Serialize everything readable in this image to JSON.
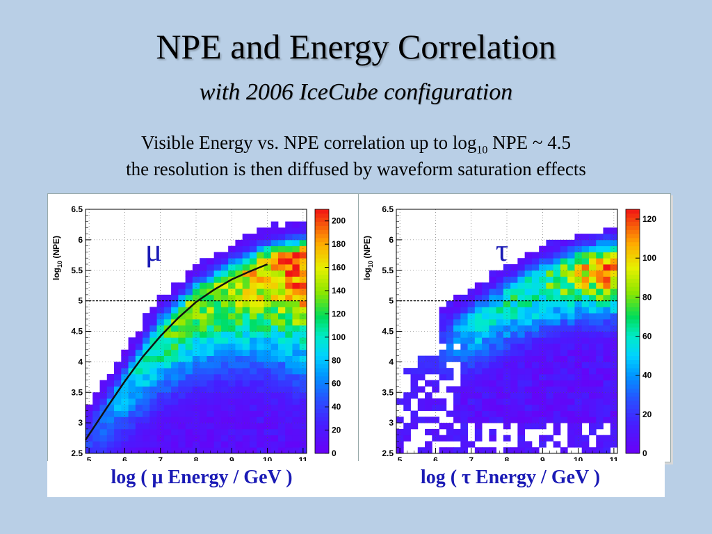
{
  "slide": {
    "title": "NPE and Energy Correlation",
    "subtitle": "with 2006 IceCube configuration",
    "desc_line1_pre": "Visible Energy vs. NPE correlation up to log",
    "desc_line1_sub": "10",
    "desc_line1_post": " NPE ~ 4.5",
    "desc_line2": "the resolution is then diffused by waveform saturation effects"
  },
  "colors": {
    "background": "#b9cfe6",
    "label_blue": "#1a1ab5",
    "symbol_blue": "#1a1ab5"
  },
  "chart_data": [
    {
      "type": "heatmap",
      "name": "muon",
      "symbol": "μ",
      "xlabel": "log ( μ Energy / GeV )",
      "ylabel": "log10 (NPE)",
      "ylabel_main": "log",
      "ylabel_sub": "10",
      "ylabel_post": " (NPE)",
      "xlim": [
        4.9,
        11.1
      ],
      "ylim": [
        2.5,
        6.5
      ],
      "x_ticks": [
        5,
        6,
        7,
        8,
        9,
        10,
        11
      ],
      "x_tick_labels": [
        "5",
        "6",
        "7",
        "8",
        "9",
        "10",
        "11"
      ],
      "y_ticks": [
        2.5,
        3,
        3.5,
        4,
        4.5,
        5,
        5.5,
        6,
        6.5
      ],
      "y_tick_labels": [
        "2.5",
        "3",
        "3.5",
        "4",
        "4.5",
        "5",
        "5.5",
        "6",
        "6.5"
      ],
      "colorbar": {
        "range": [
          0,
          210
        ],
        "ticks": [
          0,
          20,
          40,
          60,
          80,
          100,
          120,
          140,
          160,
          180,
          200
        ],
        "tick_labels": [
          "0",
          "20",
          "40",
          "60",
          "80",
          "100",
          "120",
          "140",
          "160",
          "180",
          "200"
        ]
      },
      "threshold_line_y": 5.0,
      "fit_curve": {
        "x": [
          4.9,
          5.5,
          6.0,
          6.5,
          7.0,
          7.5,
          8.0,
          8.5,
          9.0,
          9.5,
          10.0
        ],
        "y": [
          2.72,
          3.25,
          3.68,
          4.08,
          4.42,
          4.72,
          4.98,
          5.18,
          5.35,
          5.48,
          5.6
        ]
      },
      "ridge": {
        "x": [
          4.9,
          6.0,
          7.0,
          8.0,
          9.0,
          10.0,
          11.0
        ],
        "y": [
          2.7,
          3.6,
          4.45,
          5.0,
          5.35,
          5.6,
          5.7
        ],
        "peak_value": [
          40,
          80,
          120,
          140,
          150,
          170,
          200
        ]
      }
    },
    {
      "type": "heatmap",
      "name": "tau",
      "symbol": "τ",
      "xlabel": "log ( τ Energy / GeV  )",
      "ylabel": "log10 (NPE)",
      "ylabel_main": "log",
      "ylabel_sub": "10",
      "ylabel_post": " (NPE)",
      "xlim": [
        4.9,
        11.1
      ],
      "ylim": [
        2.5,
        6.5
      ],
      "x_ticks": [
        5,
        6,
        7,
        8,
        9,
        10,
        11
      ],
      "x_tick_labels": [
        "5",
        "6",
        "7",
        "8",
        "9",
        "10",
        "11"
      ],
      "y_ticks": [
        2.5,
        3,
        3.5,
        4,
        4.5,
        5,
        5.5,
        6,
        6.5
      ],
      "y_tick_labels": [
        "2.5",
        "3",
        "3.5",
        "4",
        "4.5",
        "5",
        "5.5",
        "6",
        "6.5"
      ],
      "colorbar": {
        "range": [
          0,
          125
        ],
        "ticks": [
          0,
          20,
          40,
          60,
          80,
          100,
          120
        ],
        "tick_labels": [
          "0",
          "20",
          "40",
          "60",
          "80",
          "100",
          "120"
        ]
      },
      "threshold_line_y": 5.0,
      "ridge": {
        "x": [
          6.0,
          7.0,
          8.0,
          9.0,
          10.0,
          11.0
        ],
        "y": [
          4.3,
          4.6,
          5.0,
          5.3,
          5.5,
          5.6
        ],
        "peak_value": [
          20,
          50,
          60,
          70,
          90,
          120
        ]
      }
    }
  ]
}
